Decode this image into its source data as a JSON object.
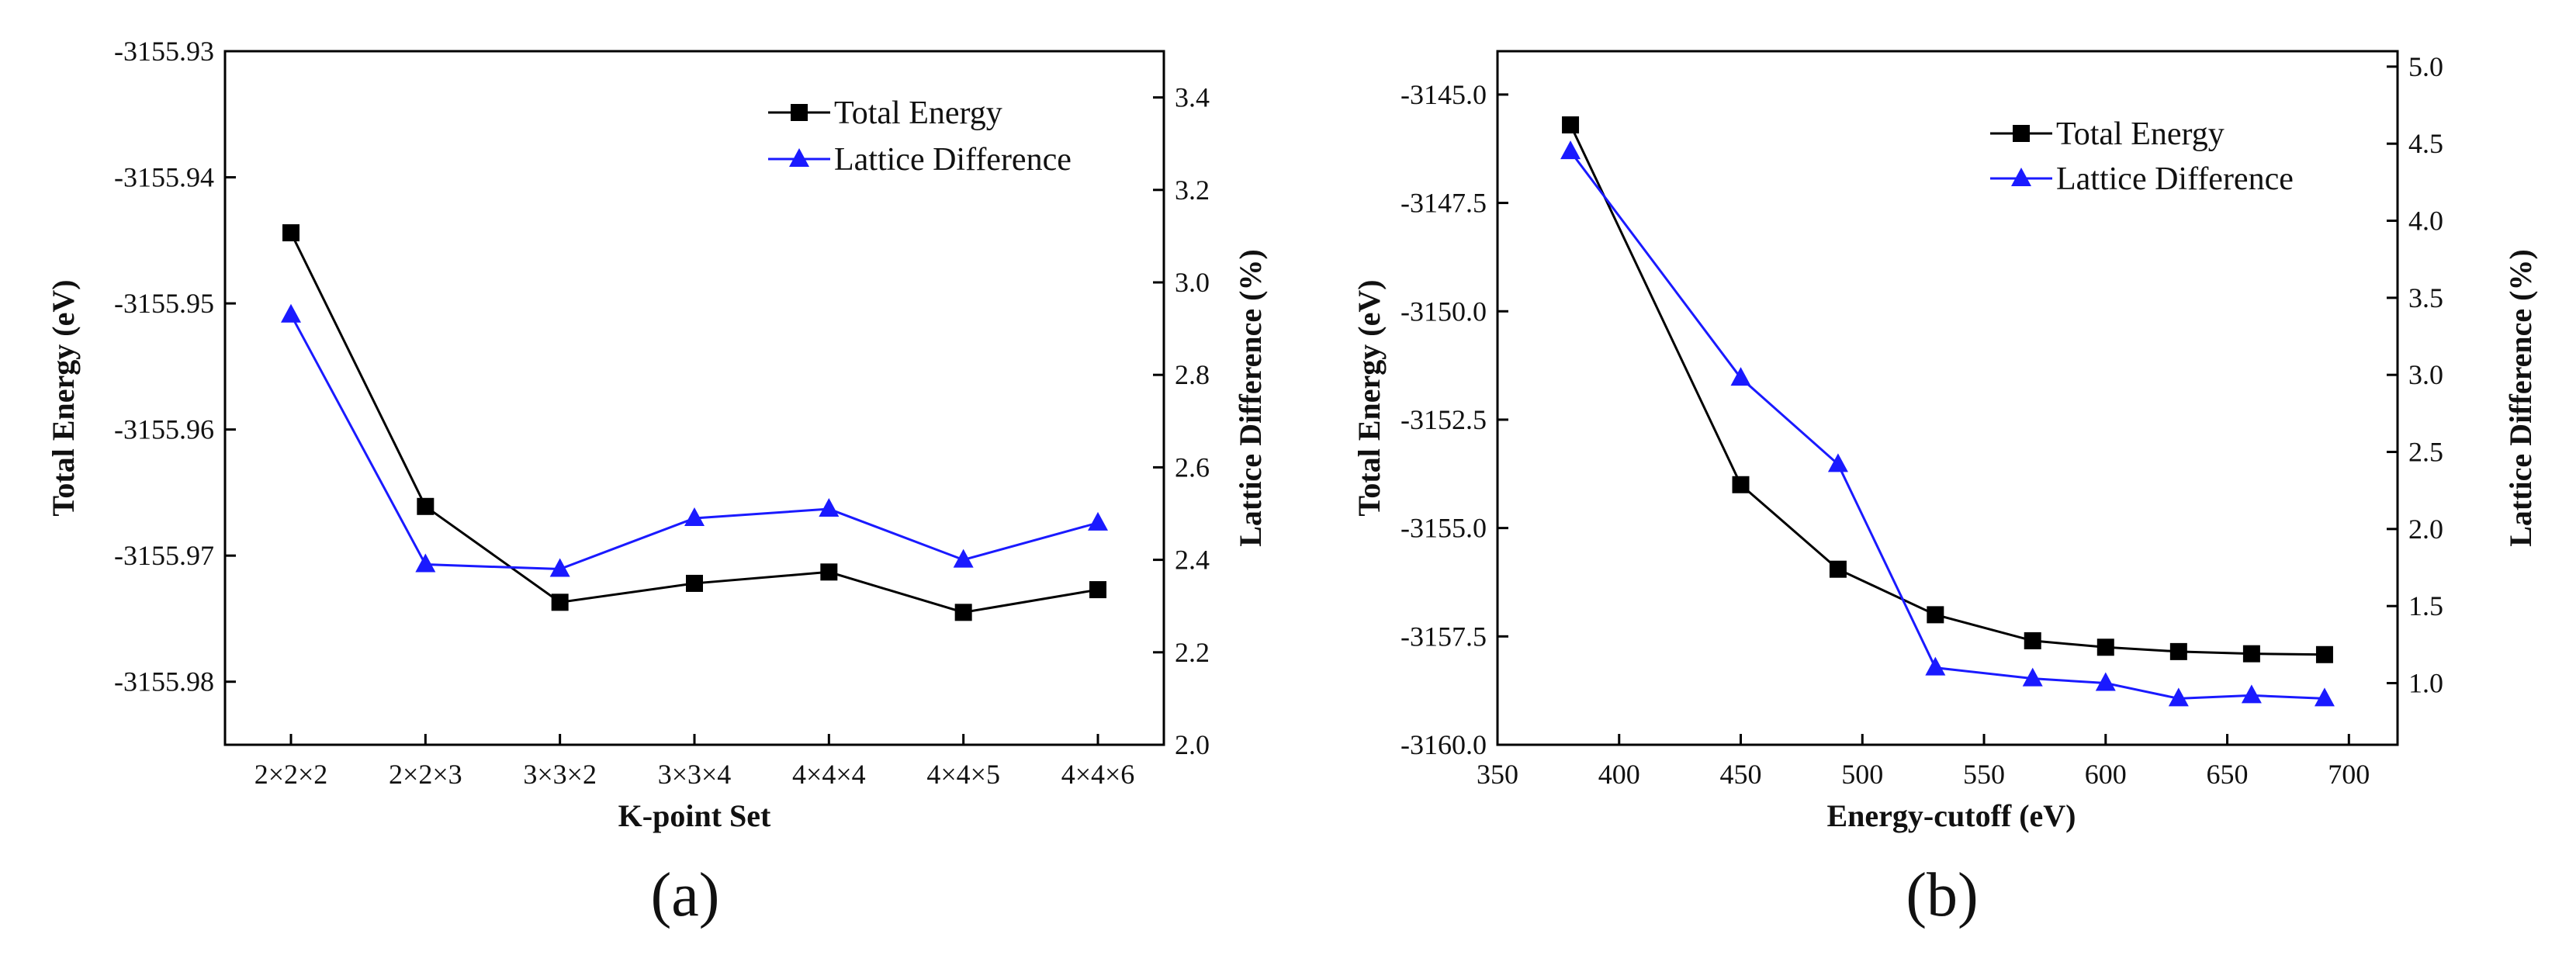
{
  "colors": {
    "total_energy": "#000000",
    "lattice_difference": "#1a1aff",
    "axis": "#000000"
  },
  "chart_data": [
    {
      "panel_label": "(a)",
      "type": "line",
      "xlabel": "K-point Set",
      "ylabel_left": "Total Energy (eV)",
      "ylabel_right": "Lattice Difference (%)",
      "categories": [
        "2×2×2",
        "2×2×3",
        "3×3×2",
        "3×3×4",
        "4×4×4",
        "4×4×5",
        "4×4×6"
      ],
      "ylim_left": [
        -3155.985,
        -3155.93
      ],
      "yticks_left": [
        -3155.93,
        -3155.94,
        -3155.95,
        -3155.96,
        -3155.97,
        -3155.98
      ],
      "ytick_labels_left": [
        "-3155.93",
        "-3155.94",
        "-3155.95",
        "-3155.96",
        "-3155.97",
        "-3155.98"
      ],
      "ylim_right": [
        2.0,
        3.5
      ],
      "yticks_right": [
        2.0,
        2.2,
        2.4,
        2.6,
        2.8,
        3.0,
        3.2,
        3.4
      ],
      "ytick_labels_right": [
        "2.0",
        "2.2",
        "2.4",
        "2.6",
        "2.8",
        "3.0",
        "3.2",
        "3.4"
      ],
      "legend_position": "top-right",
      "series": [
        {
          "name": "Total Energy",
          "axis": "left",
          "marker": "square",
          "values": [
            -3155.9444,
            -3155.9661,
            -3155.9737,
            -3155.9722,
            -3155.9713,
            -3155.9745,
            -3155.9727
          ]
        },
        {
          "name": "Lattice Difference",
          "axis": "right",
          "marker": "triangle",
          "values": [
            2.93,
            2.39,
            2.38,
            2.49,
            2.51,
            2.4,
            2.48
          ]
        }
      ]
    },
    {
      "panel_label": "(b)",
      "type": "line",
      "xlabel": "Energy-cutoff (eV)",
      "ylabel_left": "Total Energy (eV)",
      "ylabel_right": "Lattice Difference (%)",
      "xlim": [
        350,
        720
      ],
      "xticks": [
        350,
        400,
        450,
        500,
        550,
        600,
        650,
        700
      ],
      "xtick_labels": [
        "350",
        "400",
        "450",
        "500",
        "550",
        "600",
        "650",
        "700"
      ],
      "ylim_left": [
        -3160.0,
        -3144.0
      ],
      "yticks_left": [
        -3145.0,
        -3147.5,
        -3150.0,
        -3152.5,
        -3155.0,
        -3157.5,
        -3160.0
      ],
      "ytick_labels_left": [
        "-3145.0",
        "-3147.5",
        "-3150.0",
        "-3152.5",
        "-3155.0",
        "-3157.5",
        "-3160.0"
      ],
      "ylim_right": [
        0.6,
        5.1
      ],
      "yticks_right": [
        1.0,
        1.5,
        2.0,
        2.5,
        3.0,
        3.5,
        4.0,
        4.5,
        5.0
      ],
      "ytick_labels_right": [
        "1.0",
        "1.5",
        "2.0",
        "2.5",
        "3.0",
        "3.5",
        "4.0",
        "4.5",
        "5.0"
      ],
      "legend_position": "top-right",
      "series": [
        {
          "name": "Total Energy",
          "axis": "left",
          "marker": "square",
          "x": [
            380,
            450,
            490,
            530,
            570,
            600,
            630,
            660,
            690
          ],
          "values": [
            -3145.7,
            -3154.0,
            -3155.95,
            -3157.0,
            -3157.6,
            -3157.75,
            -3157.85,
            -3157.9,
            -3157.92
          ]
        },
        {
          "name": "Lattice Difference",
          "axis": "right",
          "marker": "triangle",
          "x": [
            380,
            450,
            490,
            530,
            570,
            600,
            630,
            660,
            690
          ],
          "values": [
            4.45,
            2.98,
            2.42,
            1.1,
            1.03,
            1.0,
            0.9,
            0.92,
            0.9
          ]
        }
      ]
    }
  ]
}
